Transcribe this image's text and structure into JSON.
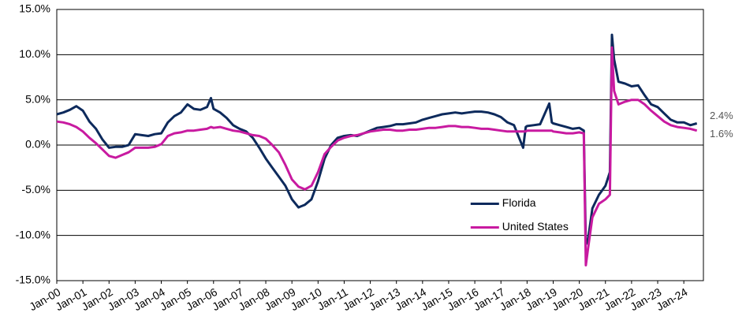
{
  "chart_data": {
    "type": "line",
    "x": [
      2000,
      2000.25,
      2000.5,
      2000.75,
      2001,
      2001.25,
      2001.5,
      2001.75,
      2002,
      2002.25,
      2002.5,
      2002.75,
      2003,
      2003.25,
      2003.5,
      2003.75,
      2004,
      2004.25,
      2004.5,
      2004.75,
      2005,
      2005.25,
      2005.5,
      2005.75,
      2005.9,
      2006,
      2006.25,
      2006.5,
      2006.75,
      2007,
      2007.25,
      2007.5,
      2007.75,
      2008,
      2008.25,
      2008.5,
      2008.75,
      2009,
      2009.25,
      2009.5,
      2009.75,
      2010,
      2010.25,
      2010.5,
      2010.75,
      2011,
      2011.25,
      2011.5,
      2011.75,
      2012,
      2012.25,
      2012.5,
      2012.75,
      2013,
      2013.25,
      2013.5,
      2013.75,
      2014,
      2014.25,
      2014.5,
      2014.75,
      2015,
      2015.25,
      2015.5,
      2015.75,
      2016,
      2016.25,
      2016.5,
      2016.75,
      2017,
      2017.25,
      2017.5,
      2017.85,
      2017.95,
      2018,
      2018.25,
      2018.5,
      2018.85,
      2018.95,
      2019,
      2019.25,
      2019.5,
      2019.75,
      2020,
      2020.17,
      2020.25,
      2020.33,
      2020.5,
      2020.75,
      2021,
      2021.17,
      2021.25,
      2021.33,
      2021.5,
      2021.75,
      2022,
      2022.25,
      2022.5,
      2022.75,
      2023,
      2023.25,
      2023.5,
      2023.75,
      2024,
      2024.25,
      2024.5
    ],
    "series": [
      {
        "name": "Florida",
        "color": "#0d2a5c",
        "last_label": "2.4%",
        "values": [
          3.4,
          3.6,
          3.9,
          4.3,
          3.8,
          2.6,
          1.8,
          0.6,
          -0.3,
          -0.2,
          -0.2,
          0.0,
          1.2,
          1.1,
          1.0,
          1.2,
          1.3,
          2.5,
          3.2,
          3.6,
          4.5,
          4.0,
          3.9,
          4.2,
          5.2,
          4.0,
          3.6,
          3.0,
          2.2,
          1.8,
          1.5,
          0.8,
          -0.3,
          -1.5,
          -2.5,
          -3.5,
          -4.5,
          -6.0,
          -6.9,
          -6.6,
          -6.0,
          -4.0,
          -1.5,
          0.0,
          0.8,
          1.0,
          1.1,
          1.0,
          1.3,
          1.6,
          1.9,
          2.0,
          2.1,
          2.3,
          2.3,
          2.4,
          2.5,
          2.8,
          3.0,
          3.2,
          3.4,
          3.5,
          3.6,
          3.5,
          3.6,
          3.7,
          3.7,
          3.6,
          3.4,
          3.1,
          2.5,
          2.2,
          -0.3,
          2.0,
          2.1,
          2.2,
          2.3,
          4.6,
          2.5,
          2.4,
          2.2,
          2.0,
          1.8,
          1.9,
          1.6,
          -11.0,
          -10.5,
          -7.0,
          -5.5,
          -4.5,
          -3.0,
          12.2,
          9.5,
          7.0,
          6.8,
          6.5,
          6.6,
          5.5,
          4.5,
          4.2,
          3.5,
          2.8,
          2.5,
          2.5,
          2.2,
          2.4
        ]
      },
      {
        "name": "United States",
        "color": "#c81aa0",
        "last_label": "1.6%",
        "values": [
          2.6,
          2.5,
          2.3,
          2.0,
          1.5,
          0.8,
          0.2,
          -0.5,
          -1.2,
          -1.4,
          -1.1,
          -0.8,
          -0.3,
          -0.3,
          -0.3,
          -0.2,
          0.1,
          1.0,
          1.3,
          1.4,
          1.6,
          1.6,
          1.7,
          1.8,
          2.0,
          1.9,
          2.0,
          1.8,
          1.6,
          1.5,
          1.3,
          1.1,
          1.0,
          0.7,
          0.0,
          -0.8,
          -2.2,
          -3.8,
          -4.6,
          -4.9,
          -4.5,
          -3.0,
          -1.0,
          -0.2,
          0.5,
          0.8,
          1.0,
          1.1,
          1.3,
          1.5,
          1.6,
          1.7,
          1.7,
          1.6,
          1.6,
          1.7,
          1.7,
          1.8,
          1.9,
          1.9,
          2.0,
          2.1,
          2.1,
          2.0,
          2.0,
          1.9,
          1.8,
          1.8,
          1.7,
          1.6,
          1.5,
          1.5,
          1.5,
          1.5,
          1.6,
          1.6,
          1.6,
          1.6,
          1.6,
          1.5,
          1.4,
          1.3,
          1.3,
          1.4,
          1.3,
          -13.3,
          -11.5,
          -8.0,
          -6.5,
          -6.0,
          -5.5,
          10.8,
          6.0,
          4.5,
          4.8,
          5.0,
          5.0,
          4.5,
          3.8,
          3.2,
          2.6,
          2.2,
          2.0,
          1.9,
          1.8,
          1.6
        ]
      }
    ],
    "xlim": [
      2000,
      2024.75
    ],
    "xticks": [
      {
        "value": 2000,
        "label": "Jan-00"
      },
      {
        "value": 2001,
        "label": "Jan-01"
      },
      {
        "value": 2002,
        "label": "Jan-02"
      },
      {
        "value": 2003,
        "label": "Jan-03"
      },
      {
        "value": 2004,
        "label": "Jan-04"
      },
      {
        "value": 2005,
        "label": "Jan-05"
      },
      {
        "value": 2006,
        "label": "Jan-06"
      },
      {
        "value": 2007,
        "label": "Jan-07"
      },
      {
        "value": 2008,
        "label": "Jan-08"
      },
      {
        "value": 2009,
        "label": "Jan-09"
      },
      {
        "value": 2010,
        "label": "Jan-10"
      },
      {
        "value": 2011,
        "label": "Jan-11"
      },
      {
        "value": 2012,
        "label": "Jan-12"
      },
      {
        "value": 2013,
        "label": "Jan-13"
      },
      {
        "value": 2014,
        "label": "Jan-14"
      },
      {
        "value": 2015,
        "label": "Jan-15"
      },
      {
        "value": 2016,
        "label": "Jan-16"
      },
      {
        "value": 2017,
        "label": "Jan-17"
      },
      {
        "value": 2018,
        "label": "Jan-18"
      },
      {
        "value": 2019,
        "label": "Jan-19"
      },
      {
        "value": 2020,
        "label": "Jan-20"
      },
      {
        "value": 2021,
        "label": "Jan-21"
      },
      {
        "value": 2022,
        "label": "Jan-22"
      },
      {
        "value": 2023,
        "label": "Jan-23"
      },
      {
        "value": 2024,
        "label": "Jan-24"
      }
    ],
    "ylim": [
      -15,
      15
    ],
    "yticks": [
      {
        "value": -15,
        "label": "-15.0%"
      },
      {
        "value": -10,
        "label": "-10.0%"
      },
      {
        "value": -5,
        "label": "-5.0%"
      },
      {
        "value": 0,
        "label": "0.0%"
      },
      {
        "value": 5,
        "label": "5.0%"
      },
      {
        "value": 10,
        "label": "10.0%"
      },
      {
        "value": 15,
        "label": "15.0%"
      }
    ],
    "grid": true,
    "legend": "lower-center"
  }
}
